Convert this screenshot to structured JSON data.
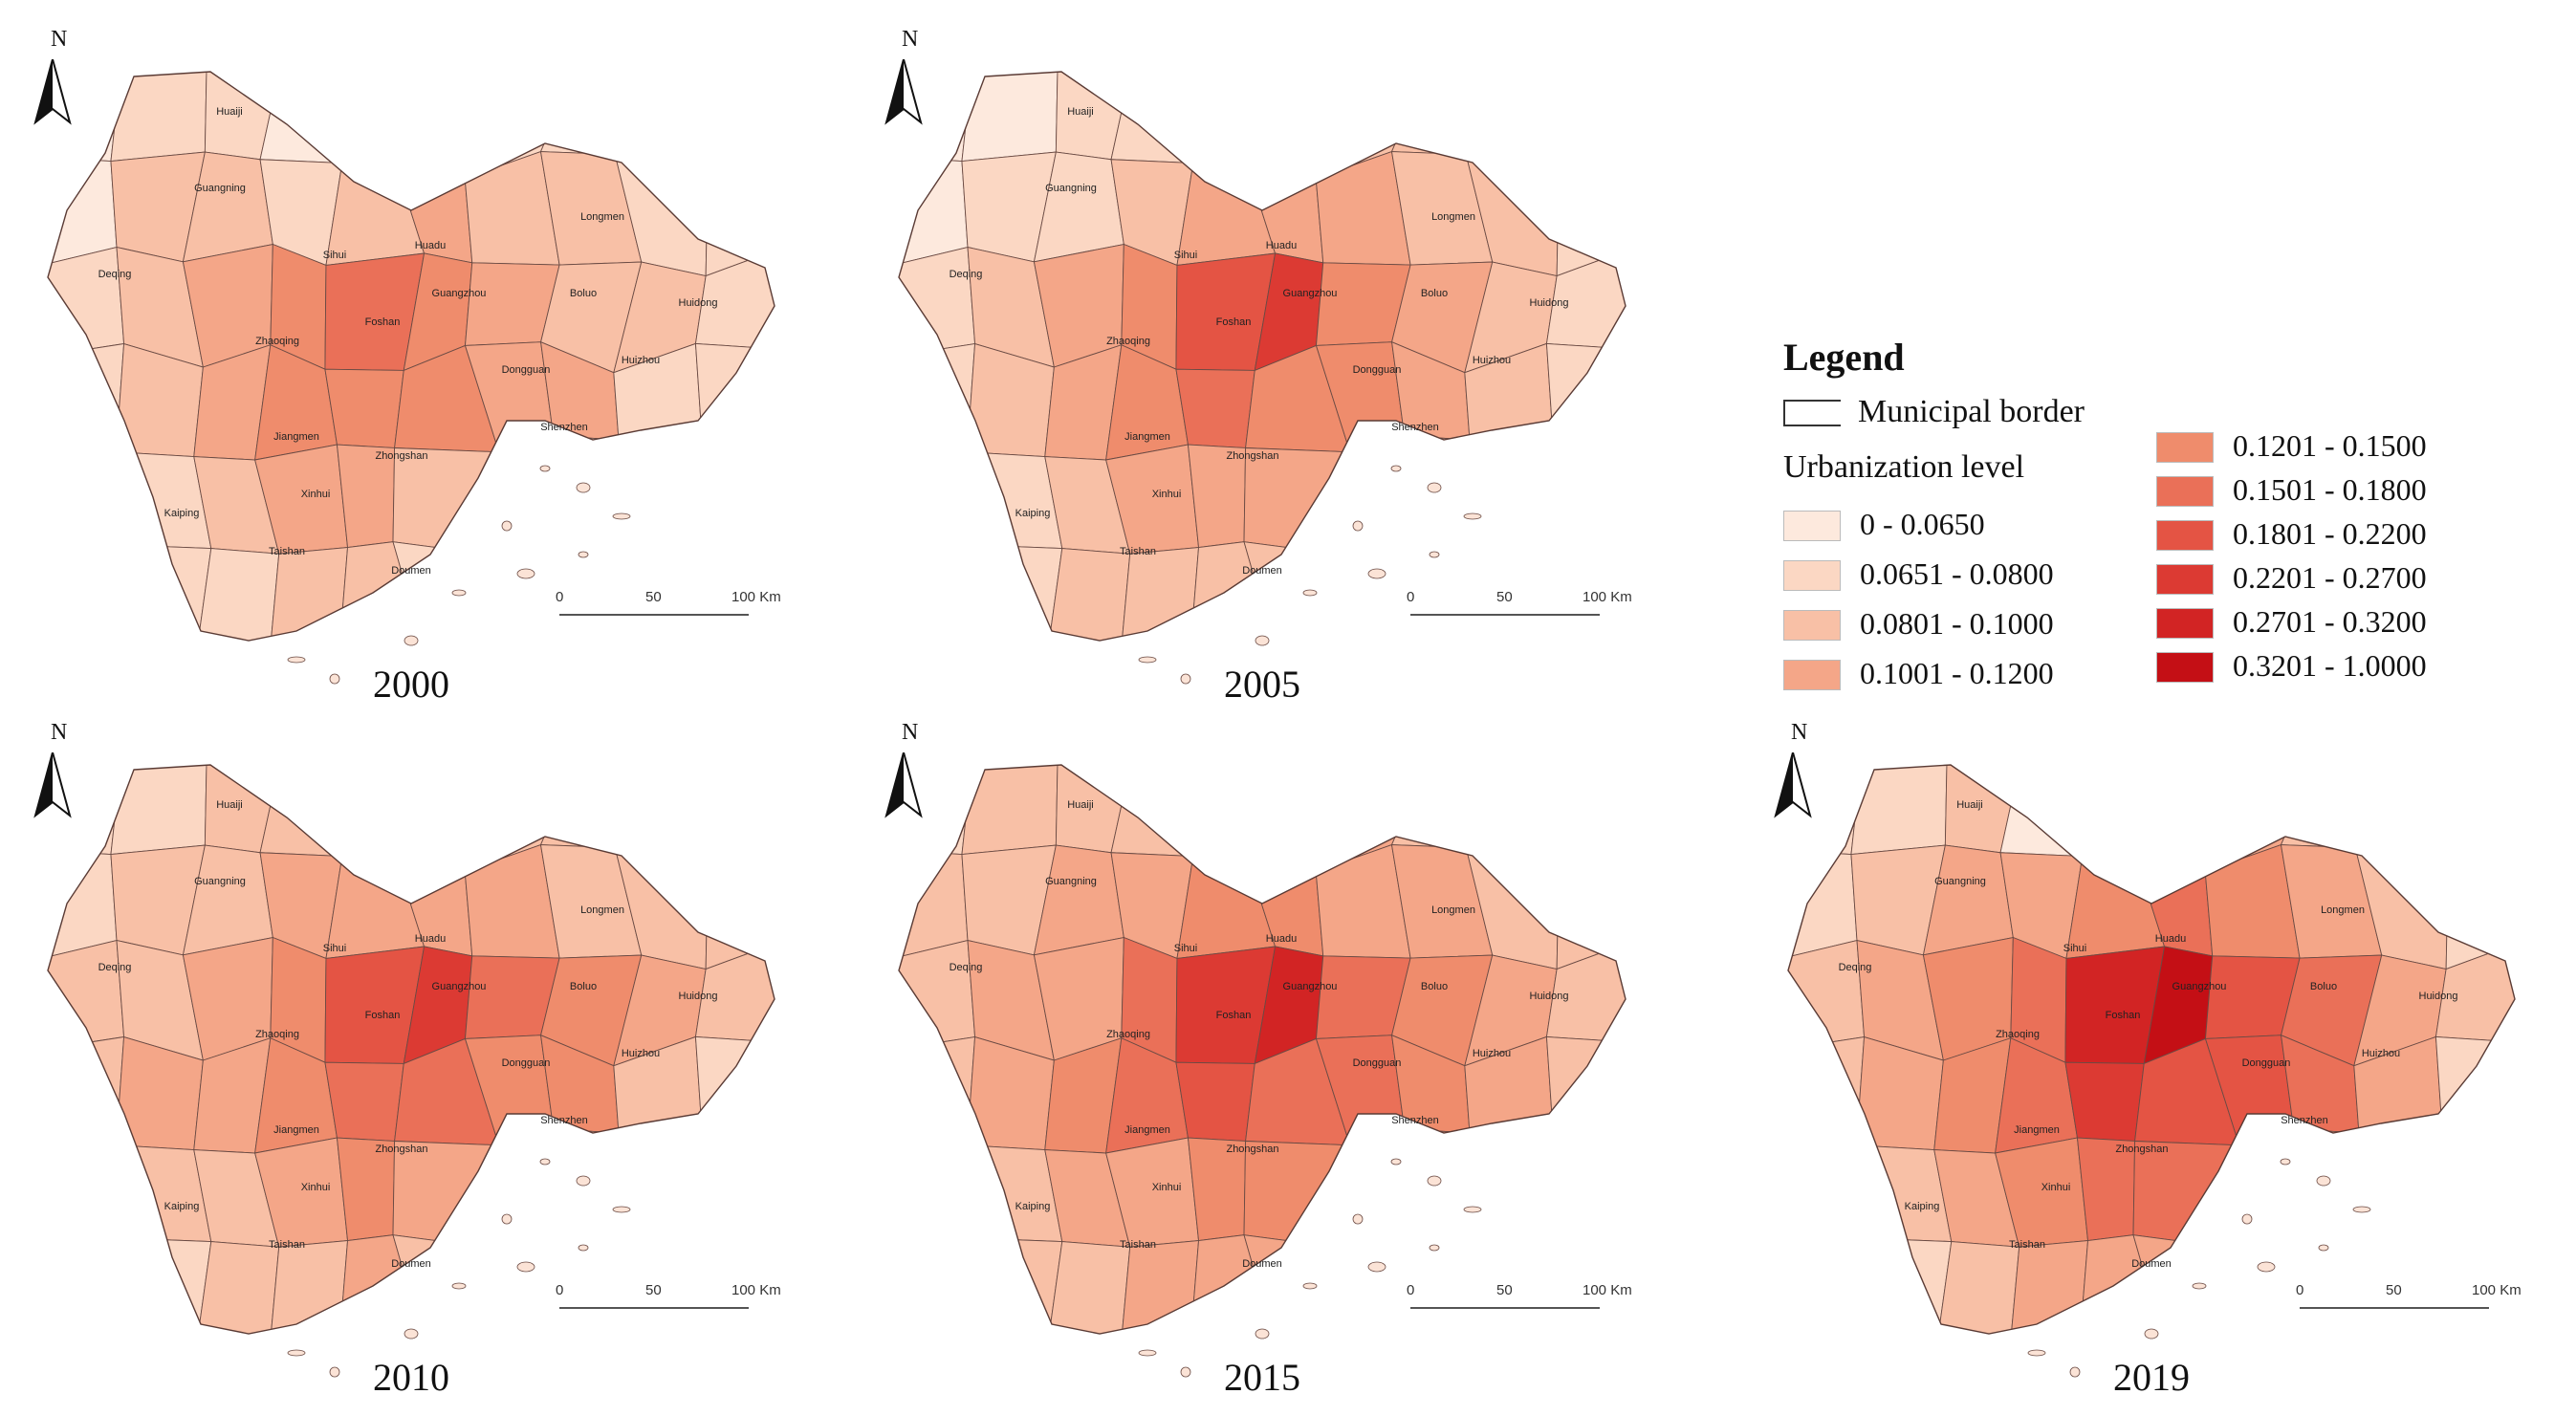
{
  "legend": {
    "title": "Legend",
    "border_label": "Municipal border",
    "level_title": "Urbanization level",
    "classes": [
      {
        "label": "0 - 0.0650",
        "color": "#fde9dd"
      },
      {
        "label": "0.0651 - 0.0800",
        "color": "#fbd7c3"
      },
      {
        "label": "0.0801 - 0.1000",
        "color": "#f8c0a6"
      },
      {
        "label": "0.1001 - 0.1200",
        "color": "#f4a688"
      },
      {
        "label": "0.1201 - 0.1500",
        "color": "#ef8c6c"
      },
      {
        "label": "0.1501 - 0.1800",
        "color": "#ea7058"
      },
      {
        "label": "0.1801 - 0.2200",
        "color": "#e45444"
      },
      {
        "label": "0.2201 - 0.2700",
        "color": "#dc3a33"
      },
      {
        "label": "0.2701 - 0.3200",
        "color": "#d22424"
      },
      {
        "label": "0.3201 - 1.0000",
        "color": "#c40f15"
      }
    ]
  },
  "north_label": "N",
  "scale": {
    "ticks": [
      "0",
      "50",
      "100 Km"
    ]
  },
  "panels": [
    {
      "year": "2000",
      "levels": [
        0,
        1,
        1,
        0,
        1,
        2,
        1,
        1,
        0,
        1,
        0,
        2,
        2,
        1,
        2,
        3,
        2,
        2,
        1,
        1,
        1,
        2,
        3,
        4,
        5,
        4,
        3,
        2,
        2,
        1,
        1,
        2,
        3,
        4,
        4,
        4,
        3,
        3,
        1,
        1,
        1,
        1,
        2,
        3,
        3,
        2,
        2,
        1,
        0,
        0,
        1,
        1,
        1,
        2,
        2,
        1,
        1,
        0,
        0,
        0
      ]
    },
    {
      "year": "2005",
      "levels": [
        0,
        0,
        1,
        1,
        1,
        2,
        2,
        2,
        1,
        1,
        0,
        1,
        1,
        2,
        3,
        3,
        3,
        2,
        2,
        1,
        1,
        2,
        3,
        4,
        6,
        7,
        4,
        3,
        2,
        1,
        1,
        2,
        3,
        4,
        5,
        4,
        4,
        3,
        2,
        1,
        1,
        1,
        2,
        3,
        3,
        3,
        2,
        2,
        1,
        0,
        1,
        1,
        2,
        2,
        2,
        2,
        1,
        1,
        0,
        0
      ]
    },
    {
      "year": "2010",
      "levels": [
        1,
        1,
        2,
        2,
        1,
        2,
        2,
        2,
        2,
        1,
        1,
        2,
        2,
        3,
        3,
        3,
        3,
        2,
        2,
        2,
        2,
        2,
        3,
        4,
        6,
        7,
        5,
        4,
        3,
        2,
        2,
        3,
        3,
        4,
        5,
        5,
        4,
        4,
        2,
        1,
        1,
        2,
        2,
        3,
        4,
        3,
        3,
        2,
        1,
        1,
        1,
        1,
        2,
        2,
        3,
        2,
        2,
        1,
        1,
        0
      ]
    },
    {
      "year": "2015",
      "levels": [
        1,
        2,
        2,
        2,
        2,
        3,
        3,
        2,
        2,
        2,
        2,
        2,
        3,
        3,
        4,
        4,
        3,
        3,
        2,
        2,
        2,
        3,
        3,
        5,
        7,
        8,
        5,
        4,
        3,
        2,
        2,
        3,
        4,
        5,
        6,
        5,
        5,
        4,
        3,
        2,
        2,
        2,
        3,
        3,
        4,
        4,
        3,
        3,
        2,
        1,
        1,
        2,
        2,
        3,
        3,
        3,
        2,
        2,
        1,
        1
      ]
    },
    {
      "year": "2019",
      "levels": [
        1,
        1,
        2,
        0,
        2,
        3,
        3,
        2,
        1,
        1,
        1,
        2,
        3,
        3,
        4,
        5,
        4,
        3,
        2,
        1,
        2,
        3,
        4,
        5,
        8,
        9,
        6,
        5,
        3,
        2,
        2,
        3,
        4,
        5,
        7,
        6,
        6,
        5,
        3,
        1,
        1,
        2,
        3,
        4,
        5,
        5,
        4,
        3,
        2,
        1,
        1,
        1,
        2,
        3,
        3,
        3,
        2,
        1,
        0,
        0
      ]
    }
  ],
  "place_labels": [
    "Huaiji",
    "Guangning",
    "Deqing",
    "Sihui",
    "Huadu",
    "Longmen",
    "Boluo",
    "Huidong",
    "Zhaoqing",
    "Foshan",
    "Guangzhou",
    "Dongguan",
    "Huizhou",
    "Jiangmen",
    "Zhongshan",
    "Shenzhen",
    "Taishan",
    "Kaiping",
    "Doumen",
    "Xinhui"
  ]
}
